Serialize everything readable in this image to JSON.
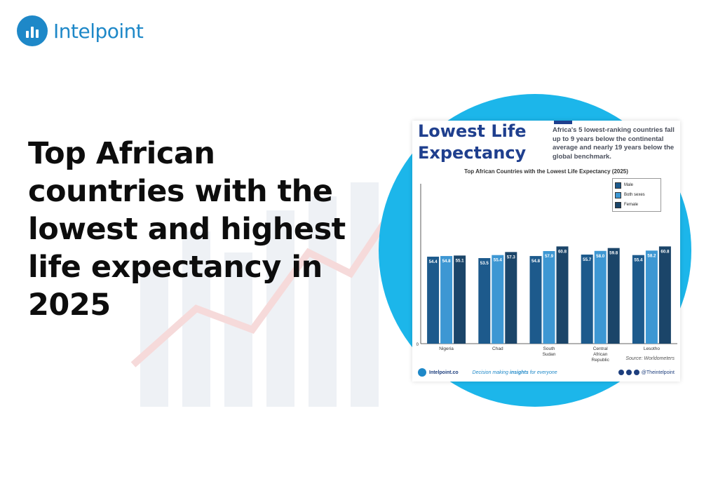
{
  "brand": {
    "name": "Intelpoint",
    "color": "#1e88c8"
  },
  "headline": "Top African countries with the lowest and highest life expectancy in 2025",
  "card": {
    "title": "Lowest Life Expectancy",
    "subtitle": "Africa's 5 lowest-ranking countries fall up to 9 years below the continental average and nearly 19 years below the global benchmark.",
    "source": "Source: Worldometers",
    "footer": {
      "site": "Intelpoint.co",
      "tagline_pre": "Decision making ",
      "tagline_bold": "insights",
      "tagline_post": " for everyone",
      "handle": "@Theintelpoint",
      "icons": [
        "x-icon",
        "instagram-icon",
        "facebook-icon"
      ]
    }
  },
  "chart_data": {
    "type": "bar",
    "title": "Top African Countries with the Lowest Life Expectancy (2025)",
    "categories": [
      "Nigeria",
      "Chad",
      "South Sudan",
      "Central African Republic",
      "Lesotho"
    ],
    "category_lines": [
      [
        "Nigeria"
      ],
      [
        "Chad"
      ],
      [
        "South",
        "Sudan"
      ],
      [
        "Central",
        "African",
        "Republic"
      ],
      [
        "Lesotho"
      ]
    ],
    "series": [
      {
        "name": "Male",
        "values": [
          54.4,
          53.5,
          54.8,
          55.7,
          55.4
        ],
        "color": "#1d5a8c"
      },
      {
        "name": "Both sexes",
        "values": [
          54.8,
          55.4,
          57.9,
          58.0,
          58.2
        ],
        "color": "#3d97d3"
      },
      {
        "name": "Female",
        "values": [
          55.1,
          57.3,
          60.8,
          59.8,
          60.8
        ],
        "color": "#1b4569"
      }
    ],
    "y_tick_label": "0",
    "ylim": [
      0,
      100
    ],
    "legend_position": "top-right",
    "grid": false
  }
}
